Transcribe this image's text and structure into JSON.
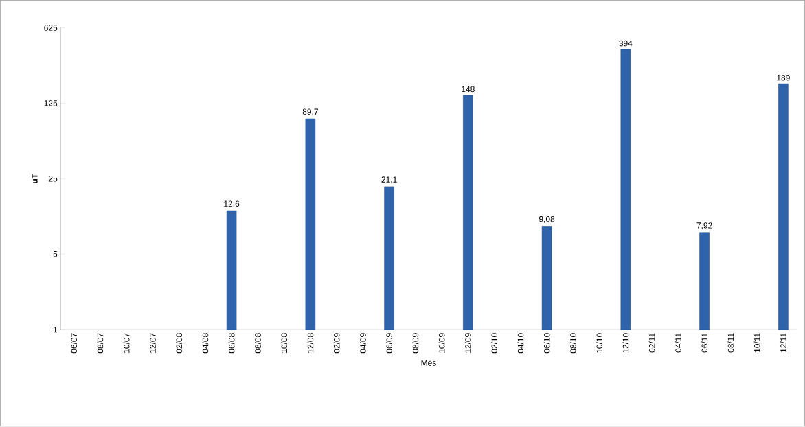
{
  "chart_data": {
    "type": "bar",
    "xlabel": "Mês",
    "ylabel": "uT",
    "categories": [
      "06/07",
      "08/07",
      "10/07",
      "12/07",
      "02/08",
      "04/08",
      "06/08",
      "08/08",
      "10/08",
      "12/08",
      "02/09",
      "04/09",
      "06/09",
      "08/09",
      "10/09",
      "12/09",
      "02/10",
      "04/10",
      "06/10",
      "08/10",
      "10/10",
      "12/10",
      "02/11",
      "04/11",
      "06/11",
      "08/11",
      "10/11",
      "12/11"
    ],
    "values": [
      null,
      null,
      null,
      null,
      null,
      null,
      12.6,
      null,
      null,
      89.7,
      null,
      null,
      21.1,
      null,
      null,
      148,
      null,
      null,
      9.08,
      null,
      null,
      394,
      null,
      null,
      7.92,
      null,
      null,
      189
    ],
    "value_labels": [
      null,
      null,
      null,
      null,
      null,
      null,
      "12,6",
      null,
      null,
      "89,7",
      null,
      null,
      "21,1",
      null,
      null,
      "148",
      null,
      null,
      "9,08",
      null,
      null,
      "394",
      null,
      null,
      "7,92",
      null,
      null,
      "189"
    ],
    "color": "#2f64ad",
    "log": true,
    "ylim": [
      1,
      625
    ],
    "yticks": [
      1,
      5,
      25,
      125,
      625
    ]
  }
}
